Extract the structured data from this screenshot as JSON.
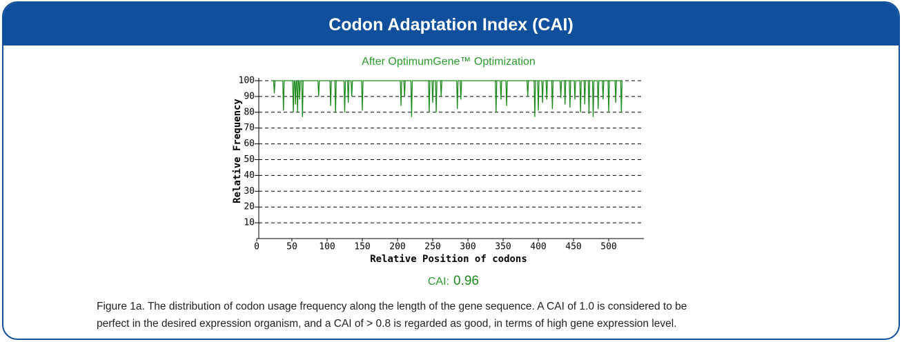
{
  "header": {
    "title": "Codon Adaptation Index (CAI)"
  },
  "chart_data": {
    "type": "line",
    "subtitle": "After OptimumGene™ Optimization",
    "xlabel": "Relative Position of codons",
    "ylabel": "Relative Frequency",
    "color": "#1e8a1e",
    "grid": true,
    "xlim": [
      0,
      550
    ],
    "ylim": [
      0,
      100
    ],
    "xticks": [
      0,
      50,
      100,
      150,
      200,
      250,
      300,
      350,
      400,
      450,
      500
    ],
    "yticks": [
      10,
      20,
      30,
      40,
      50,
      60,
      70,
      80,
      90,
      100
    ],
    "x": [
      22,
      24,
      25,
      26,
      37,
      38,
      39,
      51,
      52,
      53,
      54,
      55,
      56,
      57,
      58,
      59,
      60,
      61,
      62,
      64,
      65,
      66,
      87,
      88,
      89,
      104,
      105,
      106,
      111,
      112,
      113,
      124,
      125,
      126,
      129,
      130,
      131,
      134,
      135,
      136,
      149,
      150,
      151,
      204,
      205,
      206,
      209,
      210,
      211,
      219,
      220,
      221,
      244,
      245,
      246,
      249,
      250,
      251,
      254,
      255,
      256,
      261,
      262,
      263,
      284,
      285,
      286,
      289,
      290,
      291,
      339,
      340,
      341,
      346,
      347,
      348,
      354,
      355,
      356,
      384,
      385,
      386,
      394,
      395,
      396,
      399,
      400,
      401,
      405,
      406,
      407,
      411,
      412,
      413,
      419,
      420,
      421,
      431,
      432,
      433,
      437,
      438,
      439,
      444,
      445,
      446,
      451,
      452,
      453,
      459,
      460,
      461,
      465,
      466,
      467,
      471,
      472,
      473,
      477,
      478,
      479,
      484,
      485,
      486,
      491,
      492,
      493,
      499,
      500,
      501,
      509,
      510,
      511,
      517,
      518,
      519
    ],
    "values": [
      100,
      100,
      92,
      100,
      100,
      81,
      100,
      100,
      80,
      100,
      100,
      85,
      100,
      100,
      80,
      100,
      100,
      88,
      100,
      100,
      77,
      100,
      100,
      90,
      100,
      100,
      84,
      100,
      100,
      80,
      100,
      100,
      80,
      100,
      100,
      86,
      100,
      100,
      90,
      100,
      100,
      81,
      100,
      100,
      84,
      100,
      100,
      90,
      100,
      100,
      77,
      100,
      100,
      80,
      100,
      100,
      86,
      100,
      100,
      80,
      100,
      100,
      90,
      100,
      100,
      82,
      100,
      100,
      88,
      100,
      100,
      80,
      100,
      100,
      88,
      100,
      100,
      84,
      100,
      100,
      90,
      100,
      100,
      77,
      100,
      100,
      81,
      100,
      100,
      86,
      100,
      100,
      88,
      100,
      100,
      82,
      100,
      100,
      89,
      100,
      100,
      85,
      100,
      100,
      83,
      100,
      100,
      88,
      100,
      100,
      80,
      100,
      100,
      85,
      100,
      100,
      79,
      100,
      100,
      77,
      100,
      100,
      82,
      100,
      100,
      88,
      100,
      100,
      80,
      100,
      100,
      86,
      100,
      100,
      80,
      100
    ]
  },
  "cai": {
    "label": "CAI:",
    "value": "0.96"
  },
  "caption_lines": [
    "Figure 1a. The distribution of codon usage frequency along the length of the gene sequence.  A CAI of 1.0 is considered to be",
    "perfect in the desired expression organism, and a CAI of > 0.8 is regarded as good, in terms of high gene expression level."
  ]
}
